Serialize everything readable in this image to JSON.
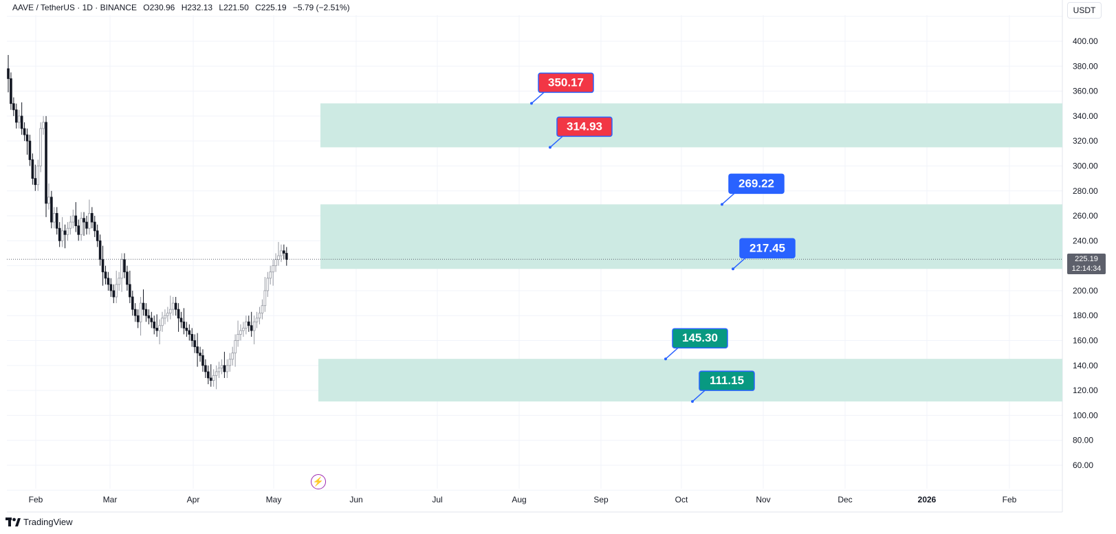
{
  "legend": {
    "symbol": "AAVE / TetherUS · 1D · BINANCE",
    "open": "O230.96",
    "high": "H232.13",
    "low": "L221.50",
    "close": "C225.19",
    "change": "−5.79 (−2.51%)"
  },
  "currency_button": "USDT",
  "last_price": {
    "value": "225.19",
    "countdown": "12:14:34"
  },
  "brand": "TradingView",
  "colors": {
    "zone_fill": "#cdeae3",
    "red_label": "#f23645",
    "blue_label": "#2962ff",
    "green_label": "#089981",
    "candle_up": "#9598a1",
    "candle_down": "#131722",
    "grid": "#f0f3fa"
  },
  "chart_data": {
    "type": "candlestick",
    "y_axis": {
      "min": 40,
      "max": 420,
      "ticks": [
        "400.00",
        "380.00",
        "360.00",
        "340.00",
        "320.00",
        "300.00",
        "280.00",
        "260.00",
        "240.00",
        "220.00",
        "200.00",
        "180.00",
        "160.00",
        "140.00",
        "120.00",
        "100.00",
        "80.00",
        "60.00"
      ],
      "tick_values": [
        400,
        380,
        360,
        340,
        320,
        300,
        280,
        260,
        240,
        220,
        200,
        180,
        160,
        140,
        120,
        100,
        80,
        60
      ]
    },
    "x_axis": {
      "labels": [
        "Feb",
        "Mar",
        "Apr",
        "May",
        "Jun",
        "Jul",
        "Aug",
        "Sep",
        "Oct",
        "Nov",
        "Dec",
        "2026",
        "Feb"
      ],
      "bold": [
        false,
        false,
        false,
        false,
        false,
        false,
        false,
        false,
        false,
        false,
        false,
        true,
        false
      ]
    },
    "zones": [
      {
        "top": 350.17,
        "bottom": 314.93,
        "start": "2025-05-17"
      },
      {
        "top": 269.22,
        "bottom": 217.45,
        "start": "2025-05-17"
      },
      {
        "top": 145.3,
        "bottom": 111.15,
        "start": "2025-05-16"
      }
    ],
    "labels": [
      {
        "text": "350.17",
        "price": 350.17,
        "color": "red"
      },
      {
        "text": "314.93",
        "price": 314.93,
        "color": "red"
      },
      {
        "text": "269.22",
        "price": 269.22,
        "color": "blue"
      },
      {
        "text": "217.45",
        "price": 217.45,
        "color": "blue"
      },
      {
        "text": "145.30",
        "price": 145.3,
        "color": "green"
      },
      {
        "text": "111.15",
        "price": 111.15,
        "color": "green"
      }
    ],
    "last_price_line": 225.19,
    "candles_close_approx": [
      370,
      350,
      345,
      335,
      340,
      330,
      325,
      320,
      305,
      290,
      285,
      300,
      330,
      335,
      270,
      275,
      255,
      262,
      250,
      240,
      248,
      245,
      250,
      255,
      260,
      252,
      245,
      258,
      255,
      250,
      262,
      255,
      248,
      240,
      225,
      215,
      210,
      205,
      200,
      195,
      205,
      210,
      225,
      215,
      205,
      195,
      185,
      180,
      175,
      190,
      185,
      180,
      178,
      175,
      170,
      168,
      172,
      178,
      180,
      182,
      185,
      190,
      185,
      178,
      175,
      170,
      168,
      165,
      160,
      155,
      150,
      148,
      140,
      135,
      130,
      128,
      132,
      135,
      138,
      140,
      135,
      140,
      145,
      150,
      160,
      165,
      168,
      170,
      175,
      172,
      168,
      175,
      178,
      182,
      188,
      200,
      210,
      215,
      220,
      225,
      228,
      232,
      230,
      225
    ]
  }
}
